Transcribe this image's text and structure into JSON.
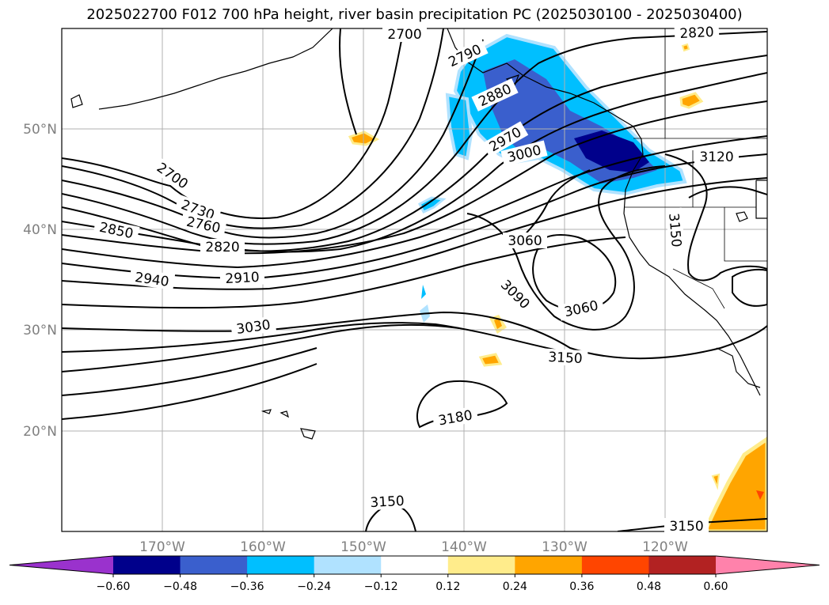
{
  "title": "2025022700 F012 700 hPa height, river basin precipitation PC (2025030100 - 2025030400)",
  "map": {
    "lat_labels": [
      "50°N",
      "40°N",
      "30°N",
      "20°N"
    ],
    "lon_labels": [
      "170°W",
      "160°W",
      "150°W",
      "140°W",
      "130°W",
      "120°W"
    ],
    "contour_labels": [
      "2700",
      "2790",
      "2820",
      "2880",
      "2970",
      "3000",
      "3120",
      "2700",
      "2730",
      "2760",
      "2850",
      "2820",
      "3060",
      "3150",
      "2940",
      "2910",
      "3090",
      "3060",
      "3030",
      "3150",
      "3180",
      "3150",
      "3150"
    ]
  },
  "colorbar": {
    "colors": [
      "#9a32cd",
      "#00008b",
      "#3a5fcd",
      "#00bfff",
      "#b0e2ff",
      "#ffffff",
      "#ffec8b",
      "#ffa500",
      "#ff4500",
      "#b22222",
      "#ff82ab"
    ],
    "tick_labels": [
      "−0.60",
      "−0.48",
      "−0.36",
      "−0.24",
      "−0.12",
      "0.12",
      "0.24",
      "0.36",
      "0.48",
      "0.60"
    ]
  }
}
